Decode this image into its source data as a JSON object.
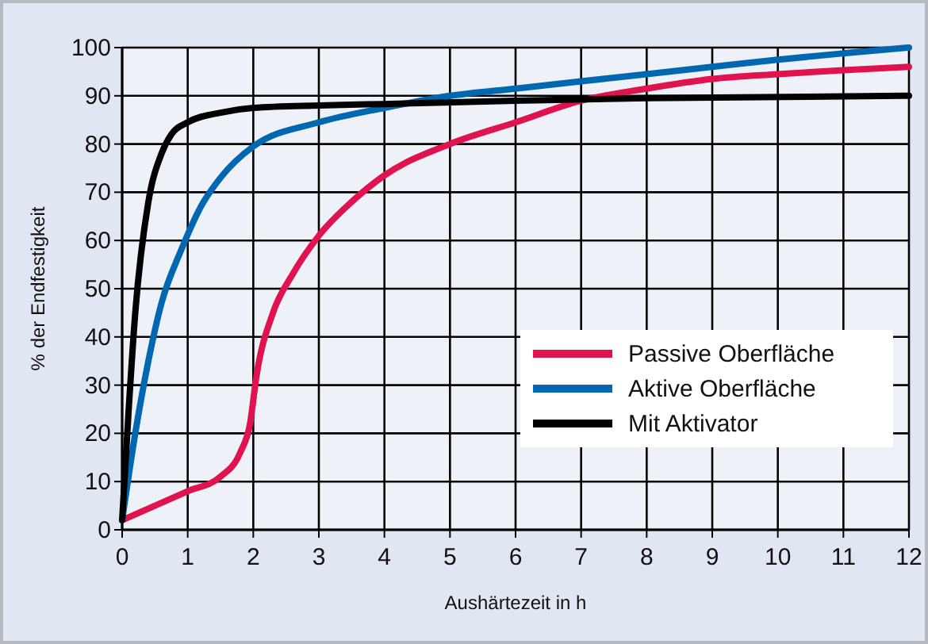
{
  "chart_data": {
    "type": "line",
    "xlabel": "Aushärtezeit in h",
    "ylabel": "% der Endfestigkeit",
    "xlim": [
      0,
      12
    ],
    "ylim": [
      0,
      100
    ],
    "xticks": [
      0,
      1,
      2,
      3,
      4,
      5,
      6,
      7,
      8,
      9,
      10,
      11,
      12
    ],
    "yticks": [
      0,
      10,
      20,
      30,
      40,
      50,
      60,
      70,
      80,
      90,
      100
    ],
    "grid": true,
    "legend": "bottom right",
    "marker": "none",
    "line_style": "solid",
    "series": [
      {
        "name": "Passive Oberfläche",
        "color": "#e0134f",
        "x": [
          0,
          1,
          1.5,
          1.8,
          1.95,
          2.05,
          2.3,
          2.6,
          3,
          3.5,
          4,
          5,
          6,
          7,
          8,
          9,
          10,
          11,
          12
        ],
        "values": [
          2,
          8,
          11,
          16,
          22,
          32,
          45,
          53,
          61,
          68,
          73.5,
          80,
          84.5,
          89,
          91.5,
          93.5,
          94.5,
          95.3,
          96
        ]
      },
      {
        "name": "Aktive Oberfläche",
        "color": "#0068b0",
        "x": [
          0,
          0.2,
          0.4,
          0.6,
          0.9,
          1.2,
          1.5,
          2,
          3,
          4,
          5,
          6,
          7,
          8,
          9,
          10,
          11,
          12
        ],
        "values": [
          2,
          20,
          35,
          47,
          58,
          67,
          73,
          79.5,
          84.5,
          87.5,
          90,
          91.5,
          93,
          94.5,
          96,
          97.5,
          98.8,
          100
        ]
      },
      {
        "name": "Mit Aktivator",
        "color": "#000000",
        "x": [
          0,
          0.1,
          0.2,
          0.4,
          0.6,
          0.75,
          1,
          1.5,
          2,
          3,
          4,
          6,
          8,
          12
        ],
        "values": [
          2,
          25,
          45,
          68,
          78,
          82,
          84.5,
          86.5,
          87.5,
          88,
          88.3,
          89,
          89.5,
          90
        ]
      }
    ]
  }
}
